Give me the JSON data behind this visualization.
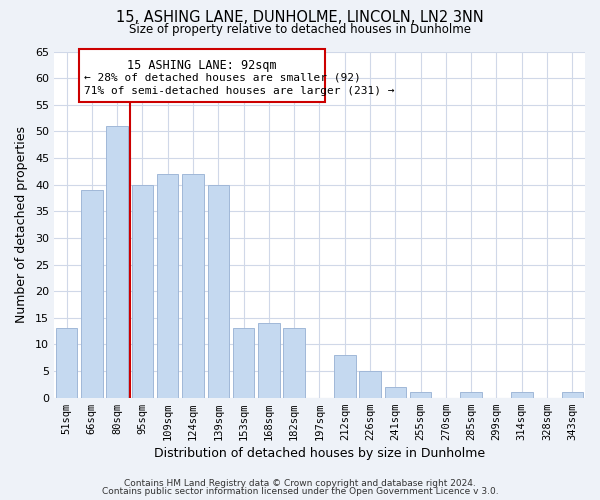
{
  "title": "15, ASHING LANE, DUNHOLME, LINCOLN, LN2 3NN",
  "subtitle": "Size of property relative to detached houses in Dunholme",
  "xlabel": "Distribution of detached houses by size in Dunholme",
  "ylabel": "Number of detached properties",
  "bar_labels": [
    "51sqm",
    "66sqm",
    "80sqm",
    "95sqm",
    "109sqm",
    "124sqm",
    "139sqm",
    "153sqm",
    "168sqm",
    "182sqm",
    "197sqm",
    "212sqm",
    "226sqm",
    "241sqm",
    "255sqm",
    "270sqm",
    "285sqm",
    "299sqm",
    "314sqm",
    "328sqm",
    "343sqm"
  ],
  "bar_values": [
    13,
    39,
    51,
    40,
    42,
    42,
    40,
    13,
    14,
    13,
    0,
    8,
    5,
    2,
    1,
    0,
    1,
    0,
    1,
    0,
    1
  ],
  "bar_color": "#c5d9f0",
  "bar_edge_color": "#a0b8d8",
  "marker_color": "#cc0000",
  "ylim": [
    0,
    65
  ],
  "yticks": [
    0,
    5,
    10,
    15,
    20,
    25,
    30,
    35,
    40,
    45,
    50,
    55,
    60,
    65
  ],
  "annotation_title": "15 ASHING LANE: 92sqm",
  "annotation_line1": "← 28% of detached houses are smaller (92)",
  "annotation_line2": "71% of semi-detached houses are larger (231) →",
  "footer_line1": "Contains HM Land Registry data © Crown copyright and database right 2024.",
  "footer_line2": "Contains public sector information licensed under the Open Government Licence v 3.0.",
  "bg_color": "#eef2f8",
  "plot_bg_color": "#ffffff",
  "grid_color": "#d0d8e8"
}
